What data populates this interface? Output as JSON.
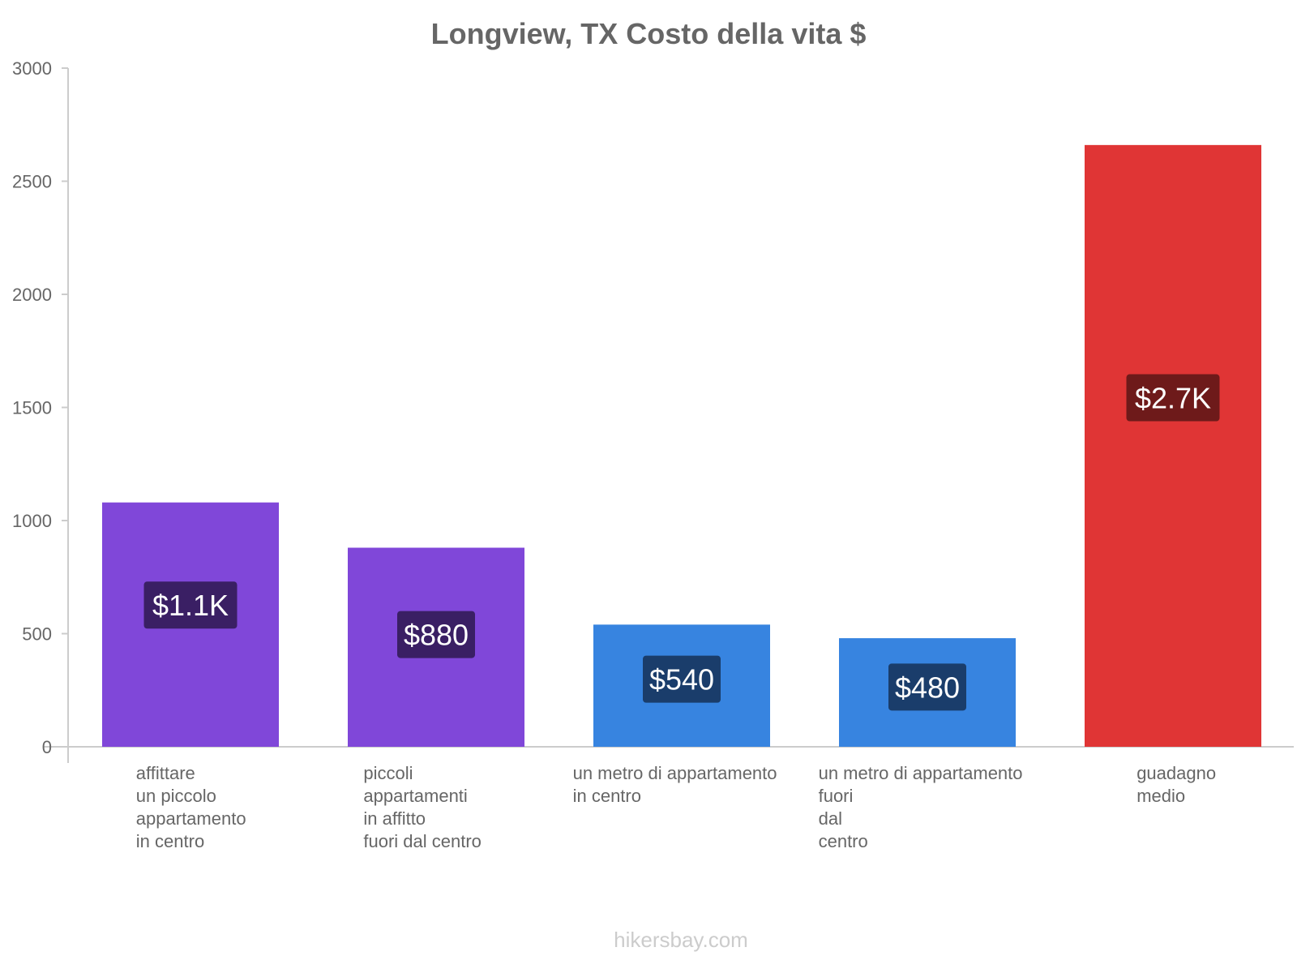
{
  "chart_data": {
    "type": "bar",
    "title": "Longview, TX Costo della vita $",
    "xlabel": "",
    "ylabel": "",
    "ylim": [
      0,
      3000
    ],
    "yticks": [
      0,
      500,
      1000,
      1500,
      2000,
      2500,
      3000
    ],
    "grid": false,
    "categories": [
      [
        "affittare",
        "un piccolo",
        "appartamento",
        "in centro"
      ],
      [
        "piccoli",
        "appartamenti",
        "in affitto",
        "fuori dal centro"
      ],
      [
        "un metro di appartamento",
        "in centro"
      ],
      [
        "un metro di appartamento",
        "fuori",
        "dal",
        "centro"
      ],
      [
        "guadagno",
        "medio"
      ]
    ],
    "values": [
      1080,
      880,
      540,
      480,
      2660
    ],
    "value_labels": [
      "$1.1K",
      "$880",
      "$540",
      "$480",
      "$2.7K"
    ],
    "bar_colors": [
      "#8047d9",
      "#8047d9",
      "#3784e0",
      "#3784e0",
      "#e03535"
    ],
    "label_colors": [
      "#3a1f64",
      "#3a1f64",
      "#1a3d6b",
      "#1a3d6b",
      "#6e1a1a"
    ]
  },
  "source": "hikersbay.com"
}
